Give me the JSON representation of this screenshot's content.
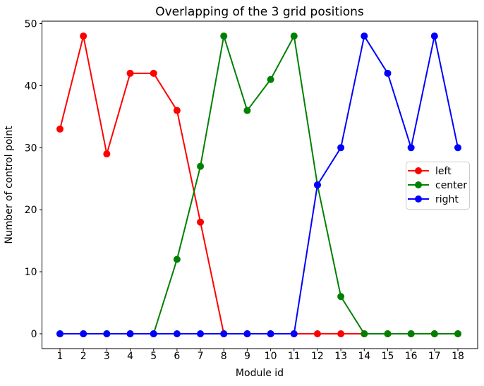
{
  "chart_data": {
    "type": "line",
    "title": "Overlapping of the 3 grid positions",
    "xlabel": "Module id",
    "ylabel": "Number of control point",
    "x": [
      1,
      2,
      3,
      4,
      5,
      6,
      7,
      8,
      9,
      10,
      11,
      12,
      13,
      14,
      15,
      16,
      17,
      18
    ],
    "series": [
      {
        "name": "left",
        "color": "#ff0000",
        "values": [
          33,
          48,
          29,
          42,
          42,
          36,
          18,
          0,
          0,
          0,
          0,
          0,
          0,
          0,
          0,
          0,
          0,
          0
        ]
      },
      {
        "name": "center",
        "color": "#008000",
        "values": [
          0,
          0,
          0,
          0,
          0,
          12,
          27,
          48,
          36,
          41,
          48,
          24,
          6,
          0,
          0,
          0,
          0,
          0
        ]
      },
      {
        "name": "right",
        "color": "#0000ff",
        "values": [
          0,
          0,
          0,
          0,
          0,
          0,
          0,
          0,
          0,
          0,
          0,
          24,
          30,
          48,
          42,
          30,
          48,
          30
        ]
      }
    ],
    "yticks": [
      0,
      10,
      20,
      30,
      40,
      50
    ],
    "xticks": [
      1,
      2,
      3,
      4,
      5,
      6,
      7,
      8,
      9,
      10,
      11,
      12,
      13,
      14,
      15,
      16,
      17,
      18
    ],
    "ylim": [
      -2.4,
      50.4
    ],
    "xlim": [
      0.15,
      18.85
    ],
    "grid": false,
    "marker": "o",
    "legend": {
      "position": "center right",
      "entries": [
        "left",
        "center",
        "right"
      ]
    },
    "frame_color": "#000000",
    "background_color": "#ffffff"
  }
}
